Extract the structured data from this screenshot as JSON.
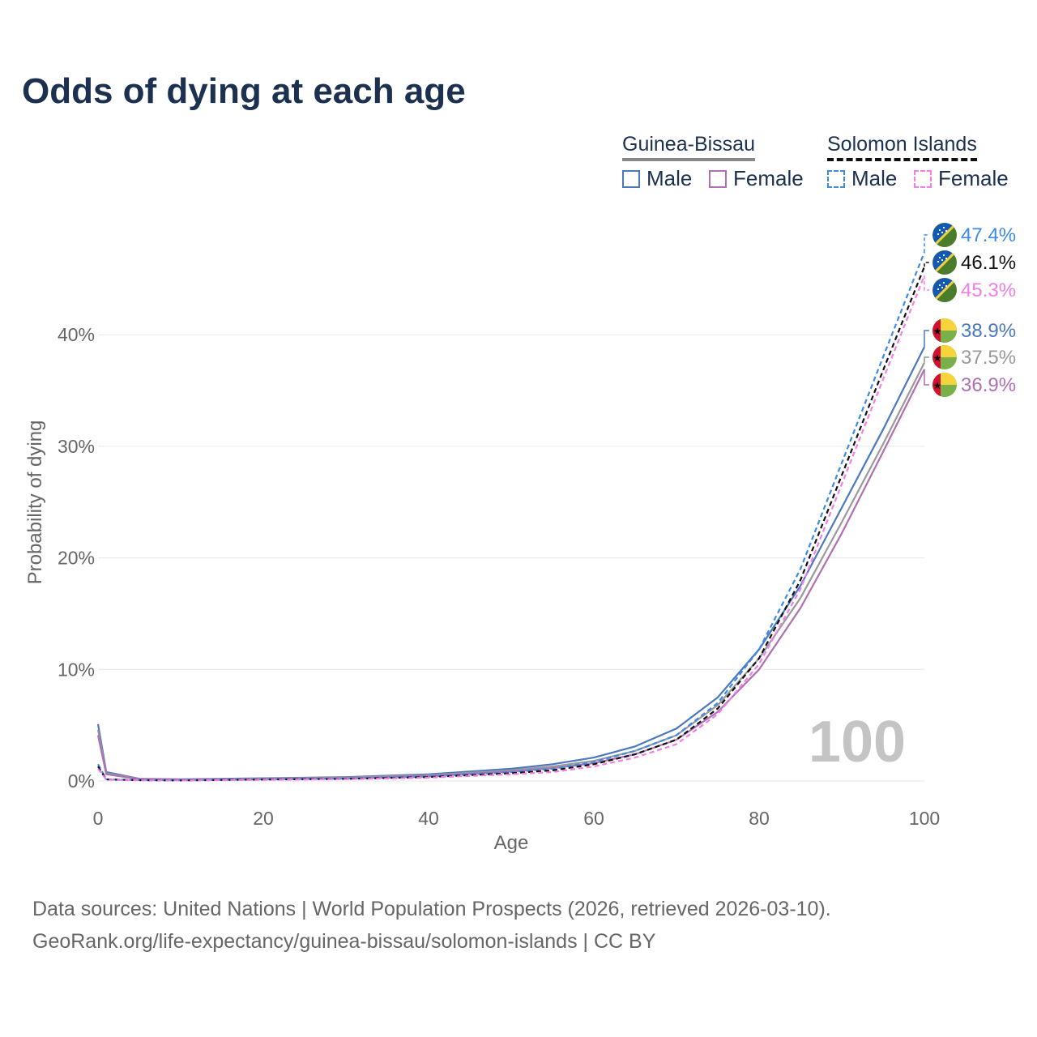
{
  "title": "Odds of dying at each age",
  "legend": {
    "groups": [
      {
        "name": "Guinea-Bissau",
        "line_color": "#888888",
        "dashed": false,
        "items": [
          {
            "label": "Male",
            "color": "#4a78bf"
          },
          {
            "label": "Female",
            "color": "#b06fb4"
          }
        ]
      },
      {
        "name": "Solomon Islands",
        "line_color": "#111111",
        "dashed": true,
        "items": [
          {
            "label": "Male",
            "color": "#3d8ae6"
          },
          {
            "label": "Female",
            "color": "#f27ee6"
          }
        ]
      }
    ]
  },
  "watermark_year": "100",
  "footer": {
    "line1": "Data sources: United Nations | World Population Prospects (2026, retrieved 2026-03-10).",
    "line2": "GeoRank.org/life-expectancy/guinea-bissau/solomon-islands | CC BY"
  },
  "chart_data": {
    "type": "line",
    "title": "Odds of dying at each age",
    "xlabel": "Age",
    "ylabel": "Probability of dying",
    "xlim": [
      0,
      100
    ],
    "ylim": [
      0,
      0.48
    ],
    "x_ticks": [
      0,
      20,
      40,
      60,
      80,
      100
    ],
    "x_tick_labels": [
      "0",
      "20",
      "40",
      "60",
      "80",
      "100"
    ],
    "y_ticks": [
      0,
      0.1,
      0.2,
      0.3,
      0.4
    ],
    "y_tick_labels": [
      "0%",
      "10%",
      "20%",
      "30%",
      "40%"
    ],
    "grid": true,
    "x": [
      0,
      1,
      5,
      10,
      20,
      30,
      40,
      50,
      55,
      60,
      65,
      70,
      75,
      80,
      85,
      90,
      95,
      100
    ],
    "series": [
      {
        "name": "Guinea-Bissau Male",
        "country": "Guinea-Bissau",
        "color": "#4a78bf",
        "dashed": false,
        "end_label": "38.9%",
        "values": [
          0.051,
          0.008,
          0.002,
          0.0015,
          0.0025,
          0.0035,
          0.006,
          0.011,
          0.015,
          0.021,
          0.031,
          0.047,
          0.075,
          0.118,
          0.175,
          0.245,
          0.315,
          0.389
        ]
      },
      {
        "name": "Guinea-Bissau Total",
        "country": "Guinea-Bissau",
        "color": "#999999",
        "dashed": false,
        "end_label": "37.5%",
        "values": [
          0.046,
          0.007,
          0.0018,
          0.0013,
          0.0022,
          0.003,
          0.0052,
          0.0095,
          0.013,
          0.018,
          0.027,
          0.041,
          0.068,
          0.11,
          0.164,
          0.232,
          0.302,
          0.375
        ]
      },
      {
        "name": "Guinea-Bissau Female",
        "country": "Guinea-Bissau",
        "color": "#b06fb4",
        "dashed": false,
        "end_label": "36.9%",
        "values": [
          0.041,
          0.006,
          0.0016,
          0.0011,
          0.0018,
          0.0025,
          0.0045,
          0.0085,
          0.0115,
          0.016,
          0.024,
          0.037,
          0.062,
          0.1,
          0.155,
          0.222,
          0.295,
          0.369
        ]
      },
      {
        "name": "Solomon Islands Male",
        "country": "Solomon Islands",
        "color": "#3d8ae6",
        "dashed": true,
        "end_label": "47.4%",
        "values": [
          0.015,
          0.0015,
          0.0008,
          0.0006,
          0.0015,
          0.0022,
          0.004,
          0.008,
          0.011,
          0.017,
          0.027,
          0.041,
          0.07,
          0.118,
          0.19,
          0.285,
          0.38,
          0.474
        ]
      },
      {
        "name": "Solomon Islands Total",
        "country": "Solomon Islands",
        "color": "#111111",
        "dashed": true,
        "end_label": "46.1%",
        "values": [
          0.013,
          0.0014,
          0.0007,
          0.0005,
          0.0013,
          0.0019,
          0.0035,
          0.007,
          0.0095,
          0.015,
          0.024,
          0.037,
          0.065,
          0.11,
          0.18,
          0.274,
          0.368,
          0.461
        ]
      },
      {
        "name": "Solomon Islands Female",
        "country": "Solomon Islands",
        "color": "#f27ee6",
        "dashed": true,
        "end_label": "45.3%",
        "values": [
          0.011,
          0.0012,
          0.0006,
          0.0004,
          0.001,
          0.0016,
          0.003,
          0.006,
          0.008,
          0.013,
          0.021,
          0.033,
          0.06,
          0.105,
          0.172,
          0.266,
          0.36,
          0.453
        ]
      }
    ]
  }
}
